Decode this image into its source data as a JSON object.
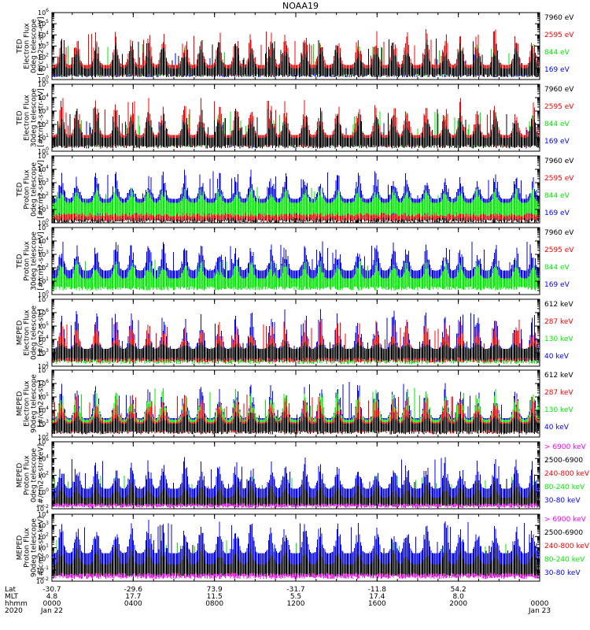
{
  "title": "NOAA19",
  "colors": {
    "black": "#000000",
    "red": "#ff0000",
    "green": "#00ee00",
    "blue": "#0000ff",
    "magenta": "#ff00ff"
  },
  "chart_data": [
    {
      "type": "line",
      "ylabel": [
        "TED",
        "Electron Flux",
        "0deg telescope",
        "[#/cm2-s-str-eV]"
      ],
      "ylim_exp": [
        0,
        6
      ],
      "yticks": [
        0,
        1,
        2,
        3,
        4,
        5,
        6
      ],
      "legend": [
        {
          "text": "7960 eV",
          "color": "black"
        },
        {
          "text": "2595 eV",
          "color": "red"
        },
        {
          "text": "844 eV",
          "color": "green"
        },
        {
          "text": "169 eV",
          "color": "blue"
        }
      ],
      "series": [
        {
          "name": "169 eV",
          "color": "blue",
          "base": 1.0,
          "peak": 2.5
        },
        {
          "name": "844 eV",
          "color": "green",
          "base": 1.2,
          "peak": 3.2
        },
        {
          "name": "2595 eV",
          "color": "red",
          "base": 1.3,
          "peak": 4.6
        },
        {
          "name": "7960 eV",
          "color": "black",
          "base": 1.0,
          "peak": 3.8
        }
      ]
    },
    {
      "type": "line",
      "ylabel": [
        "TED",
        "Electron Flux",
        "30deg telescope",
        "[#/cm2-s-str-eV]"
      ],
      "ylim_exp": [
        0,
        5
      ],
      "yticks": [
        0,
        1,
        2,
        3,
        4,
        5
      ],
      "legend": [
        {
          "text": "7960 eV",
          "color": "black"
        },
        {
          "text": "2595 eV",
          "color": "red"
        },
        {
          "text": "844 eV",
          "color": "green"
        },
        {
          "text": "169 eV",
          "color": "blue"
        }
      ],
      "series": [
        {
          "name": "169 eV",
          "color": "blue",
          "base": 1.2,
          "peak": 2.3
        },
        {
          "name": "844 eV",
          "color": "green",
          "base": 1.2,
          "peak": 3.0
        },
        {
          "name": "2595 eV",
          "color": "red",
          "base": 1.2,
          "peak": 4.0
        },
        {
          "name": "7960 eV",
          "color": "black",
          "base": 1.0,
          "peak": 3.3
        }
      ]
    },
    {
      "type": "line",
      "ylabel": [
        "TED",
        "Proton Flux",
        "0deg telescope",
        "[#/cm2-s-str-eV]"
      ],
      "ylim_exp": [
        0,
        5
      ],
      "yticks": [
        0,
        1,
        2,
        3,
        4,
        5
      ],
      "legend": [
        {
          "text": "7960 eV",
          "color": "black"
        },
        {
          "text": "2595 eV",
          "color": "red"
        },
        {
          "text": "844 eV",
          "color": "green"
        },
        {
          "text": "169 eV",
          "color": "blue"
        }
      ],
      "series": [
        {
          "name": "7960 eV",
          "color": "black",
          "base": 0.5,
          "peak": 1.2
        },
        {
          "name": "2595 eV",
          "color": "red",
          "base": 0.8,
          "peak": 1.4
        },
        {
          "name": "169 eV",
          "color": "blue",
          "base": 1.8,
          "peak": 4.0
        },
        {
          "name": "844 eV",
          "color": "green",
          "base": 1.5,
          "peak": 2.7
        }
      ]
    },
    {
      "type": "line",
      "ylabel": [
        "TED",
        "Proton Flux",
        "30deg telescope",
        "[#/cm2-s-str-eV]"
      ],
      "ylim_exp": [
        0,
        5
      ],
      "yticks": [
        0,
        1,
        2,
        3,
        4,
        5
      ],
      "legend": [
        {
          "text": "7960 eV",
          "color": "black"
        },
        {
          "text": "2595 eV",
          "color": "red"
        },
        {
          "text": "844 eV",
          "color": "green"
        },
        {
          "text": "169 eV",
          "color": "blue"
        }
      ],
      "series": [
        {
          "name": "169 eV",
          "color": "blue",
          "base": 1.8,
          "peak": 4.0
        },
        {
          "name": "844 eV",
          "color": "green",
          "base": 1.2,
          "peak": 2.6
        }
      ]
    },
    {
      "type": "line",
      "ylabel": [
        "MEPED",
        "Electron Flux",
        "0deg telescope",
        "[#/cm2-s-str]"
      ],
      "ylim_exp": [
        2,
        7
      ],
      "yticks": [
        2,
        3,
        4,
        5,
        6,
        7
      ],
      "legend": [
        {
          "text": "612 keV",
          "color": "black"
        },
        {
          "text": "287 keV",
          "color": "red"
        },
        {
          "text": "130 keV",
          "color": "green"
        },
        {
          "text": "40 keV",
          "color": "blue"
        }
      ],
      "series": [
        {
          "name": "130 keV",
          "color": "green",
          "base": 2.9,
          "peak": 3.6
        },
        {
          "name": "40 keV",
          "color": "blue",
          "base": 3.3,
          "peak": 6.3
        },
        {
          "name": "287 keV",
          "color": "red",
          "base": 3.1,
          "peak": 5.5
        },
        {
          "name": "612 keV",
          "color": "black",
          "base": 3.3,
          "peak": 3.9
        }
      ]
    },
    {
      "type": "line",
      "ylabel": [
        "MEPED",
        "Electron Flux",
        "90deg telescope",
        "[#/cm2-s-str]"
      ],
      "ylim_exp": [
        2,
        7
      ],
      "yticks": [
        2,
        3,
        4,
        5,
        6,
        7
      ],
      "legend": [
        {
          "text": "612 keV",
          "color": "black"
        },
        {
          "text": "287 keV",
          "color": "red"
        },
        {
          "text": "130 keV",
          "color": "green"
        },
        {
          "text": "40 keV",
          "color": "blue"
        }
      ],
      "series": [
        {
          "name": "40 keV",
          "color": "blue",
          "base": 3.4,
          "peak": 6.2
        },
        {
          "name": "130 keV",
          "color": "green",
          "base": 3.3,
          "peak": 5.7
        },
        {
          "name": "287 keV",
          "color": "red",
          "base": 3.1,
          "peak": 5.2
        },
        {
          "name": "612 keV",
          "color": "black",
          "base": 3.0,
          "peak": 4.0
        }
      ]
    },
    {
      "type": "line",
      "ylabel": [
        "MEPED",
        "Proton Flux",
        "0deg telescope",
        "[#/cm2-s-str-keV]"
      ],
      "ylim_exp": [
        -2,
        6
      ],
      "yticks": [
        -2,
        0,
        2,
        4,
        6
      ],
      "legend": [
        {
          "text": "> 6900 keV",
          "color": "magenta"
        },
        {
          "text": "2500-6900",
          "color": "black"
        },
        {
          "text": "240-800 keV",
          "color": "red"
        },
        {
          "text": "80-240 keV",
          "color": "green"
        },
        {
          "text": "30-80 keV",
          "color": "blue"
        }
      ],
      "series": [
        {
          "name": "> 6900 keV",
          "color": "magenta",
          "base": -1.2,
          "peak": -0.5
        },
        {
          "name": "240-800 keV",
          "color": "red",
          "base": -0.2,
          "peak": 0.8
        },
        {
          "name": "80-240 keV",
          "color": "green",
          "base": 0.2,
          "peak": 2.0
        },
        {
          "name": "30-80 keV",
          "color": "blue",
          "base": 0.4,
          "peak": 4.2
        },
        {
          "name": "2500-6900",
          "color": "black",
          "base": -0.7,
          "peak": 1.6
        }
      ]
    },
    {
      "type": "line",
      "ylabel": [
        "MEPED",
        "Proton Flux",
        "90deg telescope",
        "[#/cm2-s-str-keV]"
      ],
      "ylim_exp": [
        -2,
        4
      ],
      "yticks": [
        -2,
        -1,
        0,
        1,
        2,
        3,
        4
      ],
      "legend": [
        {
          "text": "> 6900 keV",
          "color": "magenta"
        },
        {
          "text": "2500-6900",
          "color": "black"
        },
        {
          "text": "240-800 keV",
          "color": "red"
        },
        {
          "text": "80-240 keV",
          "color": "green"
        },
        {
          "text": "30-80 keV",
          "color": "blue"
        }
      ],
      "series": [
        {
          "name": "> 6900 keV",
          "color": "magenta",
          "base": -1.0,
          "peak": -0.3
        },
        {
          "name": "240-800 keV",
          "color": "red",
          "base": -0.2,
          "peak": 0.7
        },
        {
          "name": "80-240 keV",
          "color": "green",
          "base": 0.1,
          "peak": 1.8
        },
        {
          "name": "30-80 keV",
          "color": "blue",
          "base": 0.5,
          "peak": 3.5
        },
        {
          "name": "2500-6900",
          "color": "black",
          "base": -0.5,
          "peak": 1.3
        }
      ]
    }
  ],
  "x_axis": {
    "row_labels": [
      "Lat",
      "MLT",
      "hhmm",
      "2020"
    ],
    "ticks": [
      {
        "lat": "-30.7",
        "mlt": "4.8",
        "hhmm": "0000",
        "date": "Jan 22"
      },
      {
        "lat": "-29.6",
        "mlt": "17.7",
        "hhmm": "0400",
        "date": ""
      },
      {
        "lat": "73.9",
        "mlt": "11.5",
        "hhmm": "0800",
        "date": ""
      },
      {
        "lat": "-31.7",
        "mlt": "5.5",
        "hhmm": "1200",
        "date": ""
      },
      {
        "lat": "-11.8",
        "mlt": "17.4",
        "hhmm": "1600",
        "date": ""
      },
      {
        "lat": "54.2",
        "mlt": "8.0",
        "hhmm": "2000",
        "date": ""
      },
      {
        "lat": "",
        "mlt": "",
        "hhmm": "0000",
        "date": "Jan 23"
      }
    ]
  }
}
